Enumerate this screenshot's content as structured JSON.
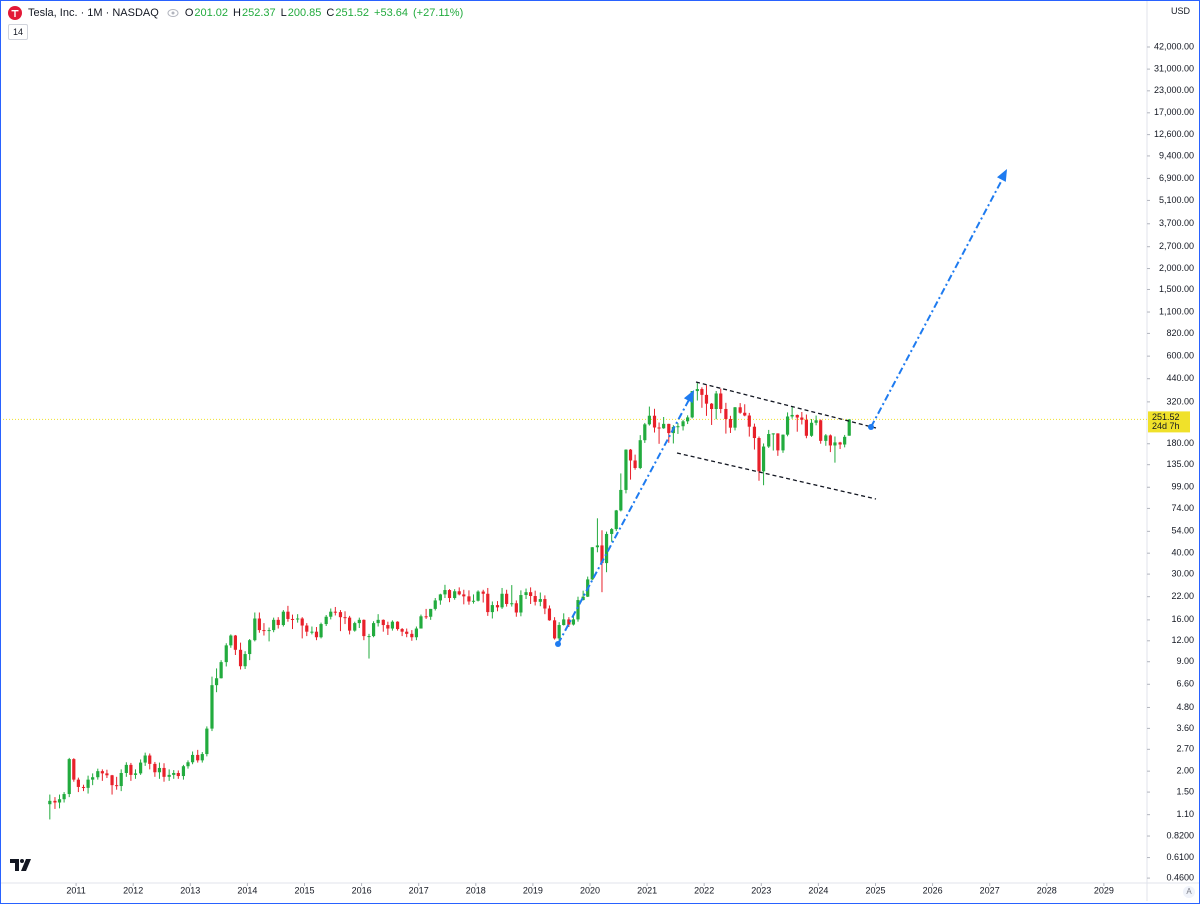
{
  "chart_data": {
    "type": "candlestick",
    "title": "Tesla, Inc. · 1M · NASDAQ",
    "legend": {
      "open_label": "O",
      "open": 201.02,
      "high_label": "H",
      "high": 252.37,
      "low_label": "L",
      "low": 200.85,
      "close_label": "C",
      "close": 251.52,
      "change": {
        "value": 53.64,
        "label": "+53.64"
      },
      "change_percent": {
        "value": 27.11,
        "label": "(+27.11%)"
      }
    },
    "indicator_badge": "14",
    "currency": "USD",
    "last_price": 251.52,
    "countdown": "24d 7h",
    "scale_mode": "A",
    "log_scale": true,
    "grid": false,
    "up_color": "#22ab3e",
    "down_color": "#e8202a",
    "last_price_color": "#f0e12a",
    "xlim": [
      2009.72,
      2029.72
    ],
    "ylim": [
      0.43,
      76900
    ],
    "xticks": [
      2011,
      2012,
      2013,
      2014,
      2015,
      2016,
      2017,
      2018,
      2019,
      2020,
      2021,
      2022,
      2023,
      2024,
      2025,
      2026,
      2027,
      2028,
      2029
    ],
    "yticks": [
      {
        "value": 42000,
        "label": "42,000.00"
      },
      {
        "value": 31000,
        "label": "31,000.00"
      },
      {
        "value": 23000,
        "label": "23,000.00"
      },
      {
        "value": 17000,
        "label": "17,000.00"
      },
      {
        "value": 12600,
        "label": "12,600.00"
      },
      {
        "value": 9400,
        "label": "9,400.00"
      },
      {
        "value": 6900,
        "label": "6,900.00"
      },
      {
        "value": 5100,
        "label": "5,100.00"
      },
      {
        "value": 3700,
        "label": "3,700.00"
      },
      {
        "value": 2700,
        "label": "2,700.00"
      },
      {
        "value": 2000,
        "label": "2,000.00"
      },
      {
        "value": 1500,
        "label": "1,500.00"
      },
      {
        "value": 1100,
        "label": "1,100.00"
      },
      {
        "value": 820,
        "label": "820.00"
      },
      {
        "value": 600,
        "label": "600.00"
      },
      {
        "value": 440,
        "label": "440.00"
      },
      {
        "value": 320,
        "label": "320.00"
      },
      {
        "value": 180,
        "label": "180.00"
      },
      {
        "value": 135,
        "label": "135.00"
      },
      {
        "value": 99,
        "label": "99.00"
      },
      {
        "value": 74,
        "label": "74.00"
      },
      {
        "value": 54,
        "label": "54.00"
      },
      {
        "value": 40,
        "label": "40.00"
      },
      {
        "value": 30,
        "label": "30.00"
      },
      {
        "value": 22,
        "label": "22.00"
      },
      {
        "value": 16,
        "label": "16.00"
      },
      {
        "value": 12,
        "label": "12.00"
      },
      {
        "value": 9,
        "label": "9.00"
      },
      {
        "value": 6.6,
        "label": "6.60"
      },
      {
        "value": 4.8,
        "label": "4.80"
      },
      {
        "value": 3.6,
        "label": "3.60"
      },
      {
        "value": 2.7,
        "label": "2.70"
      },
      {
        "value": 2,
        "label": "2.00"
      },
      {
        "value": 1.5,
        "label": "1.50"
      },
      {
        "value": 1.1,
        "label": "1.10"
      },
      {
        "value": 0.82,
        "label": "0.8200"
      },
      {
        "value": 0.61,
        "label": "0.6100"
      },
      {
        "value": 0.46,
        "label": "0.4600"
      }
    ],
    "x": [
      2010.54,
      2010.63,
      2010.71,
      2010.79,
      2010.88,
      2010.96,
      2011.04,
      2011.13,
      2011.21,
      2011.29,
      2011.38,
      2011.46,
      2011.54,
      2011.63,
      2011.71,
      2011.79,
      2011.88,
      2011.96,
      2012.04,
      2012.13,
      2012.21,
      2012.29,
      2012.38,
      2012.46,
      2012.54,
      2012.63,
      2012.71,
      2012.79,
      2012.88,
      2012.96,
      2013.04,
      2013.13,
      2013.21,
      2013.29,
      2013.38,
      2013.46,
      2013.54,
      2013.63,
      2013.71,
      2013.79,
      2013.88,
      2013.96,
      2014.04,
      2014.13,
      2014.21,
      2014.29,
      2014.38,
      2014.46,
      2014.54,
      2014.63,
      2014.71,
      2014.79,
      2014.88,
      2014.96,
      2015.04,
      2015.13,
      2015.21,
      2015.29,
      2015.38,
      2015.46,
      2015.54,
      2015.63,
      2015.71,
      2015.79,
      2015.88,
      2015.96,
      2016.04,
      2016.13,
      2016.21,
      2016.29,
      2016.38,
      2016.46,
      2016.54,
      2016.63,
      2016.71,
      2016.79,
      2016.88,
      2016.96,
      2017.04,
      2017.13,
      2017.21,
      2017.29,
      2017.38,
      2017.46,
      2017.54,
      2017.63,
      2017.71,
      2017.79,
      2017.88,
      2017.96,
      2018.04,
      2018.13,
      2018.21,
      2018.29,
      2018.38,
      2018.46,
      2018.54,
      2018.63,
      2018.71,
      2018.79,
      2018.88,
      2018.96,
      2019.04,
      2019.13,
      2019.21,
      2019.29,
      2019.38,
      2019.46,
      2019.54,
      2019.63,
      2019.71,
      2019.79,
      2019.88,
      2019.96,
      2020.04,
      2020.13,
      2020.21,
      2020.29,
      2020.38,
      2020.46,
      2020.54,
      2020.63,
      2020.71,
      2020.79,
      2020.88,
      2020.96,
      2021.04,
      2021.13,
      2021.21,
      2021.29,
      2021.38,
      2021.46,
      2021.54,
      2021.63,
      2021.71,
      2021.79,
      2021.88,
      2021.96,
      2022.04,
      2022.13,
      2022.21,
      2022.29,
      2022.38,
      2022.46,
      2022.54,
      2022.63,
      2022.71,
      2022.79,
      2022.88,
      2022.96,
      2023.04,
      2023.13,
      2023.21,
      2023.29,
      2023.38,
      2023.46,
      2023.54,
      2023.63,
      2023.71,
      2023.79,
      2023.88,
      2023.96,
      2024.04,
      2024.13,
      2024.21,
      2024.29,
      2024.38,
      2024.46,
      2024.54
    ],
    "open": [
      1.27,
      1.33,
      1.3,
      1.36,
      1.46,
      2.36,
      1.78,
      1.61,
      1.59,
      1.78,
      1.84,
      2.0,
      1.94,
      1.89,
      1.65,
      1.63,
      1.95,
      2.18,
      1.9,
      1.94,
      2.25,
      2.48,
      2.21,
      1.97,
      2.09,
      1.85,
      1.9,
      1.95,
      1.87,
      2.14,
      2.26,
      2.5,
      2.32,
      2.53,
      3.59,
      6.52,
      7.17,
      8.95,
      11.27,
      12.9,
      10.6,
      8.46,
      10.0,
      12.1,
      16.3,
      13.9,
      13.8,
      13.9,
      16.0,
      14.9,
      17.9,
      16.2,
      16.1,
      16.3,
      14.8,
      13.6,
      13.6,
      12.6,
      15.1,
      16.7,
      17.9,
      17.8,
      16.6,
      16.5,
      13.8,
      15.3,
      16.0,
      12.8,
      12.8,
      15.3,
      16.0,
      14.9,
      14.2,
      15.6,
      14.1,
      13.6,
      13.2,
      12.6,
      14.2,
      16.8,
      16.7,
      18.6,
      20.9,
      22.7,
      24.1,
      21.6,
      23.7,
      22.7,
      22.1,
      20.6,
      20.8,
      23.6,
      22.9,
      17.8,
      19.6,
      19.0,
      22.9,
      19.9,
      20.1,
      17.7,
      22.5,
      23.4,
      22.2,
      20.5,
      21.3,
      18.7,
      15.9,
      12.4,
      14.9,
      16.1,
      15.0,
      16.1,
      21.0,
      22.0,
      27.9,
      43.4,
      44.5,
      34.9,
      52.1,
      55.7,
      72.0,
      95.4,
      166,
      143,
      129,
      189,
      235,
      264.5,
      225,
      222.6,
      236.5,
      208.4,
      226.6,
      229,
      245,
      258.5,
      371.3,
      381.6,
      352.3,
      312.2,
      290.1,
      359.2,
      290.3,
      252.8,
      224.5,
      297.1,
      275.6,
      265.3,
      227.5,
      194.7,
      123.2,
      173.2,
      205.7,
      207.5,
      164.3,
      203.9,
      261.8,
      267.4,
      258.1,
      250.2,
      200.8,
      240.1,
      248.5,
      187.3,
      201.9,
      175.8,
      183.3,
      178.1,
      201.02
    ],
    "high": [
      1.45,
      1.4,
      1.45,
      1.5,
      2.4,
      2.39,
      1.83,
      1.66,
      1.88,
      1.94,
      2.07,
      2.05,
      2.04,
      1.9,
      1.85,
      2.05,
      2.26,
      2.24,
      2.05,
      2.35,
      2.58,
      2.55,
      2.27,
      2.25,
      2.23,
      2.05,
      2.03,
      2.02,
      2.18,
      2.32,
      2.62,
      2.68,
      2.6,
      3.7,
      7.33,
      8.21,
      9.19,
      11.6,
      13.1,
      13.0,
      11.7,
      10.4,
      12.3,
      17.7,
      17.7,
      15.3,
      14.4,
      16.5,
      16.6,
      18.3,
      19.4,
      17.2,
      17.3,
      16.6,
      15.3,
      14.6,
      14.5,
      15.4,
      17.1,
      18.7,
      19.1,
      18.3,
      18.0,
      16.9,
      15.6,
      16.5,
      16.1,
      13.2,
      15.7,
      17.3,
      16.1,
      15.6,
      15.9,
      15.7,
      14.3,
      14.2,
      13.9,
      14.6,
      17.2,
      18.6,
      18.6,
      21.6,
      22.9,
      25.9,
      24.4,
      24.4,
      25.0,
      24.2,
      24.0,
      22.7,
      24.0,
      24.2,
      24.8,
      20.6,
      20.7,
      24.8,
      24.2,
      25.8,
      20.9,
      24.0,
      24.6,
      25.0,
      23.9,
      23.3,
      22.4,
      19.5,
      16.6,
      15.5,
      17.5,
      16.6,
      17.3,
      22.0,
      23.9,
      29.0,
      43.5,
      64.6,
      54.8,
      53.8,
      56.5,
      72.5,
      119.7,
      166.7,
      167.5,
      155,
      202.6,
      239.6,
      300,
      291,
      241,
      260,
      236.8,
      232.4,
      239,
      250,
      266,
      371.7,
      414.5,
      390.9,
      402.7,
      315,
      371.6,
      384,
      315.9,
      264.2,
      298.3,
      314.7,
      309.7,
      275,
      237.4,
      198.9,
      180.7,
      217.7,
      207.8,
      207.8,
      204.5,
      276.9,
      299.3,
      269,
      278.4,
      268.9,
      252.8,
      265.1,
      251.3,
      205.6,
      204.5,
      198.9,
      184.8,
      203.2,
      252.37
    ],
    "low": [
      1.03,
      1.19,
      1.2,
      1.3,
      1.4,
      1.73,
      1.5,
      1.52,
      1.47,
      1.65,
      1.78,
      1.75,
      1.82,
      1.45,
      1.55,
      1.52,
      1.85,
      1.75,
      1.8,
      1.9,
      2.15,
      2.05,
      1.85,
      1.8,
      1.73,
      1.75,
      1.8,
      1.8,
      1.78,
      2.07,
      2.2,
      2.25,
      2.25,
      2.45,
      3.47,
      5.92,
      7.15,
      8.43,
      10.9,
      9.87,
      8.09,
      8.14,
      9.2,
      11.9,
      13.4,
      12.9,
      11.9,
      13.5,
      14.2,
      14.6,
      15.6,
      14.1,
      15.4,
      12.4,
      12.8,
      13.1,
      12.1,
      12.4,
      14.7,
      16.1,
      17.0,
      13.7,
      15.1,
      13.1,
      13.6,
      14.3,
      12.1,
      9.4,
      12.6,
      14.6,
      13.6,
      13.0,
      13.8,
      13.8,
      12.8,
      12.6,
      12.0,
      12.1,
      14.2,
      16.2,
      16.0,
      18.2,
      19.7,
      21.6,
      20.4,
      21.1,
      22.4,
      19.8,
      19.7,
      20.0,
      20.6,
      20.3,
      16.9,
      16.3,
      18.0,
      18.6,
      19.2,
      19.2,
      16.7,
      16.8,
      21.3,
      19.9,
      19.5,
      19.3,
      17.3,
      15.8,
      12.2,
      11.8,
      14.8,
      14.5,
      14.8,
      15.6,
      20.9,
      21.9,
      27.6,
      40.5,
      23.4,
      30.8,
      46.8,
      54.2,
      71.0,
      91.0,
      109.9,
      126,
      127,
      182,
      231,
      210,
      179.8,
      221,
      182.3,
      180.7,
      206,
      216,
      236,
      255,
      326,
      295,
      264,
      233,
      252,
      273.9,
      206.9,
      208.7,
      216.2,
      271.8,
      262.5,
      198.6,
      166.2,
      108.2,
      101.8,
      169.9,
      163.9,
      152.4,
      158.8,
      199.4,
      254.1,
      212.4,
      234.6,
      194.1,
      197.9,
      231.9,
      180.1,
      175.0,
      160.5,
      138.8,
      167.4,
      171.3,
      200.85
    ],
    "close": [
      1.33,
      1.3,
      1.36,
      1.46,
      2.36,
      1.78,
      1.61,
      1.59,
      1.78,
      1.84,
      2.0,
      1.94,
      1.89,
      1.65,
      1.63,
      1.95,
      2.18,
      1.9,
      1.94,
      2.25,
      2.48,
      2.21,
      1.97,
      2.09,
      1.85,
      1.9,
      1.95,
      1.87,
      2.14,
      2.26,
      2.5,
      2.32,
      2.53,
      3.59,
      6.52,
      7.17,
      8.95,
      11.27,
      12.9,
      10.6,
      8.46,
      10.0,
      12.1,
      16.3,
      13.9,
      13.8,
      13.9,
      16.0,
      14.9,
      17.9,
      16.2,
      16.1,
      16.3,
      14.8,
      13.6,
      13.6,
      12.6,
      15.1,
      16.7,
      17.9,
      17.8,
      16.6,
      16.5,
      13.8,
      15.3,
      16.0,
      12.8,
      12.8,
      15.3,
      16.0,
      14.9,
      14.2,
      15.6,
      14.1,
      13.6,
      13.2,
      12.6,
      14.2,
      16.8,
      16.7,
      18.6,
      20.9,
      22.7,
      24.1,
      21.6,
      23.7,
      22.7,
      22.1,
      20.6,
      20.8,
      23.6,
      22.9,
      17.8,
      19.6,
      19.0,
      22.9,
      19.9,
      20.1,
      17.7,
      22.5,
      23.4,
      22.2,
      20.5,
      21.3,
      18.7,
      15.9,
      12.4,
      14.9,
      16.1,
      15.0,
      16.1,
      21.0,
      22.0,
      27.9,
      43.4,
      44.5,
      34.9,
      52.1,
      55.7,
      72.0,
      95.4,
      166,
      143,
      129,
      189,
      235,
      264.5,
      225,
      222.6,
      236.5,
      208.4,
      226.6,
      229,
      245,
      258.5,
      371.3,
      381.6,
      352.3,
      312.2,
      290.1,
      359.2,
      290.3,
      252.8,
      224.5,
      297.1,
      275.6,
      265.3,
      227.5,
      194.7,
      123.2,
      173.2,
      205.7,
      207.5,
      164.3,
      203.9,
      261.8,
      267.4,
      258.1,
      250.2,
      200.8,
      240.1,
      248.5,
      187.3,
      201.9,
      175.8,
      183.3,
      178.1,
      197.9,
      251.52
    ]
  }
}
